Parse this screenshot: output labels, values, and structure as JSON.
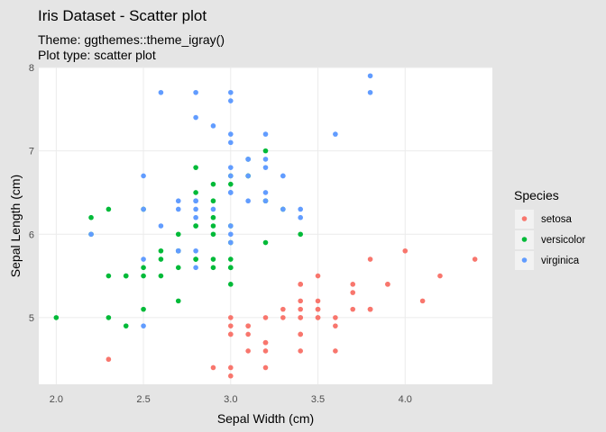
{
  "chart_data": {
    "type": "scatter",
    "title": "Iris Dataset - Scatter plot",
    "subtitle_lines": [
      "Theme: ggthemes::theme_igray()",
      "Plot type: scatter plot"
    ],
    "xlabel": "Sepal Width (cm)",
    "ylabel": "Sepal Length (cm)",
    "xlim": [
      1.9,
      4.5
    ],
    "ylim": [
      4.2,
      8.0
    ],
    "x_ticks": [
      "2.0",
      "2.5",
      "3.0",
      "3.5",
      "4.0"
    ],
    "x_tick_values": [
      2.0,
      2.5,
      3.0,
      3.5,
      4.0
    ],
    "y_ticks": [
      "5",
      "6",
      "7",
      "8"
    ],
    "y_tick_values": [
      5,
      6,
      7,
      8
    ],
    "grid": true,
    "legend": {
      "title": "Species",
      "position": "right",
      "entries": [
        "setosa",
        "versicolor",
        "virginica"
      ]
    },
    "colors": {
      "setosa": "#F8766D",
      "versicolor": "#00BA38",
      "virginica": "#619CFF",
      "background": "#e5e5e5",
      "panel": "#ffffff"
    },
    "series": [
      {
        "name": "setosa",
        "x": [
          3.5,
          3.0,
          3.2,
          3.1,
          3.6,
          3.9,
          3.4,
          3.4,
          2.9,
          3.1,
          3.7,
          3.4,
          3.0,
          3.0,
          4.0,
          4.4,
          3.9,
          3.5,
          3.8,
          3.8,
          3.4,
          3.7,
          3.6,
          3.3,
          3.4,
          3.0,
          3.4,
          3.5,
          3.4,
          3.2,
          3.1,
          3.4,
          4.1,
          4.2,
          3.1,
          3.2,
          3.5,
          3.6,
          3.0,
          3.4,
          3.5,
          2.3,
          3.2,
          3.5,
          3.8,
          3.0,
          3.8,
          3.2,
          3.7,
          3.3
        ],
        "y": [
          5.1,
          4.9,
          4.7,
          4.6,
          5.0,
          5.4,
          4.6,
          5.0,
          4.4,
          4.9,
          5.4,
          4.8,
          4.8,
          4.3,
          5.8,
          5.7,
          5.4,
          5.1,
          5.7,
          5.1,
          5.4,
          5.1,
          4.6,
          5.1,
          4.8,
          5.0,
          5.0,
          5.2,
          5.2,
          4.7,
          4.8,
          5.4,
          5.2,
          5.5,
          4.9,
          5.0,
          5.5,
          4.9,
          4.4,
          5.1,
          5.0,
          4.5,
          4.4,
          5.0,
          5.1,
          4.8,
          5.1,
          4.6,
          5.3,
          5.0
        ]
      },
      {
        "name": "versicolor",
        "x": [
          3.2,
          3.2,
          3.1,
          2.3,
          2.8,
          2.8,
          3.3,
          2.4,
          2.9,
          2.7,
          2.0,
          3.0,
          2.2,
          2.9,
          2.9,
          3.1,
          3.0,
          2.7,
          2.2,
          2.5,
          3.2,
          2.8,
          2.5,
          2.8,
          2.9,
          3.0,
          2.8,
          3.0,
          2.9,
          2.6,
          2.4,
          2.4,
          2.7,
          2.7,
          3.0,
          3.4,
          3.1,
          2.3,
          3.0,
          2.5,
          2.6,
          3.0,
          2.6,
          2.3,
          2.7,
          3.0,
          2.9,
          2.9,
          2.5,
          2.8
        ],
        "y": [
          7.0,
          6.4,
          6.9,
          5.5,
          6.5,
          5.7,
          6.3,
          4.9,
          6.6,
          5.2,
          5.0,
          5.9,
          6.0,
          6.1,
          5.6,
          6.7,
          5.6,
          5.8,
          6.2,
          5.6,
          5.9,
          6.1,
          6.3,
          6.1,
          6.4,
          6.6,
          6.8,
          6.7,
          6.0,
          5.7,
          5.5,
          5.5,
          5.8,
          6.0,
          5.4,
          6.0,
          6.7,
          6.3,
          5.6,
          5.5,
          5.5,
          6.1,
          5.8,
          5.0,
          5.6,
          5.7,
          5.7,
          6.2,
          5.1,
          5.7
        ]
      },
      {
        "name": "virginica",
        "x": [
          3.3,
          2.7,
          3.0,
          2.9,
          3.0,
          3.0,
          2.5,
          2.9,
          2.5,
          3.6,
          3.2,
          2.7,
          3.0,
          2.5,
          2.8,
          3.2,
          3.0,
          3.8,
          2.6,
          2.2,
          3.2,
          2.8,
          2.8,
          2.7,
          3.3,
          3.2,
          2.8,
          3.0,
          2.8,
          3.0,
          2.8,
          3.8,
          2.8,
          2.8,
          2.6,
          3.0,
          3.4,
          3.1,
          3.0,
          3.1,
          3.1,
          3.1,
          2.7,
          3.2,
          3.3,
          3.0,
          2.5,
          3.0,
          3.4,
          3.0
        ],
        "y": [
          6.3,
          5.8,
          7.1,
          6.3,
          6.5,
          7.6,
          4.9,
          7.3,
          6.7,
          7.2,
          6.5,
          6.4,
          6.8,
          5.7,
          5.8,
          6.4,
          6.5,
          7.7,
          7.7,
          6.0,
          6.9,
          5.6,
          7.7,
          6.3,
          6.7,
          7.2,
          6.2,
          6.1,
          6.4,
          7.2,
          7.4,
          7.9,
          6.4,
          6.3,
          6.1,
          7.7,
          6.3,
          6.4,
          6.0,
          6.9,
          6.7,
          6.9,
          5.8,
          6.8,
          6.7,
          6.7,
          6.3,
          6.5,
          6.2,
          5.9
        ]
      }
    ]
  }
}
